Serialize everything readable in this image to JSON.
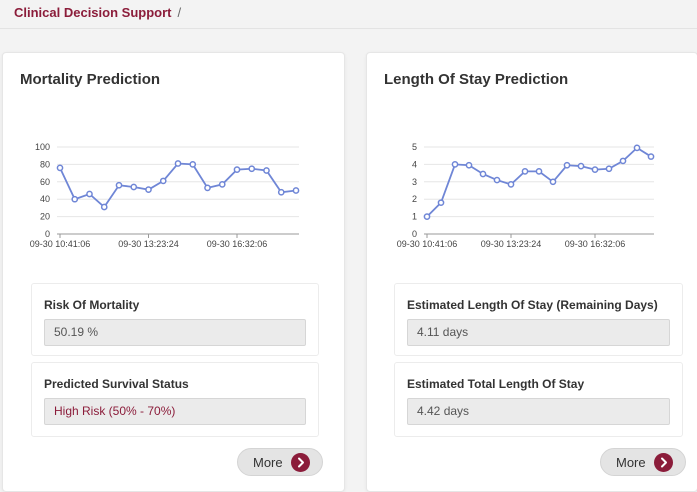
{
  "breadcrumb": {
    "current": "Clinical Decision Support",
    "separator": "/"
  },
  "colors": {
    "accent": "#8b1c3a",
    "line": "#6f86d6"
  },
  "mortality": {
    "title": "Mortality Prediction",
    "field1": {
      "label": "Risk Of Mortality",
      "value": "50.19 %"
    },
    "field2": {
      "label": "Predicted Survival Status",
      "value": "High Risk (50% - 70%)"
    },
    "more_label": "More"
  },
  "los": {
    "title": "Length Of Stay Prediction",
    "field1": {
      "label": "Estimated Length Of Stay (Remaining Days)",
      "value": "4.11 days"
    },
    "field2": {
      "label": "Estimated Total Length Of Stay",
      "value": "4.42 days"
    },
    "more_label": "More"
  },
  "chart_data": [
    {
      "type": "line",
      "title": "",
      "xlabel": "",
      "ylabel": "",
      "ylim": [
        0,
        100
      ],
      "yticks": [
        0,
        20,
        40,
        60,
        80,
        100
      ],
      "x_tick_labels": [
        "09-30 10:41:06",
        "09-30 13:23:24",
        "09-30 16:32:06"
      ],
      "x_tick_indices": [
        0,
        6,
        12
      ],
      "grid": true,
      "values": [
        76,
        40,
        46,
        31,
        56,
        54,
        51,
        61,
        81,
        80,
        53,
        57,
        74,
        75,
        73,
        48,
        50
      ]
    },
    {
      "type": "line",
      "title": "",
      "xlabel": "",
      "ylabel": "",
      "ylim": [
        0,
        5
      ],
      "yticks": [
        0,
        1,
        2,
        3,
        4,
        5
      ],
      "x_tick_labels": [
        "09-30 10:41:06",
        "09-30 13:23:24",
        "09-30 16:32:06"
      ],
      "x_tick_indices": [
        0,
        6,
        12
      ],
      "grid": true,
      "values": [
        1.0,
        1.8,
        4.0,
        3.95,
        3.45,
        3.1,
        2.85,
        3.6,
        3.6,
        3.0,
        3.95,
        3.9,
        3.7,
        3.75,
        4.2,
        4.95,
        4.45
      ]
    }
  ]
}
